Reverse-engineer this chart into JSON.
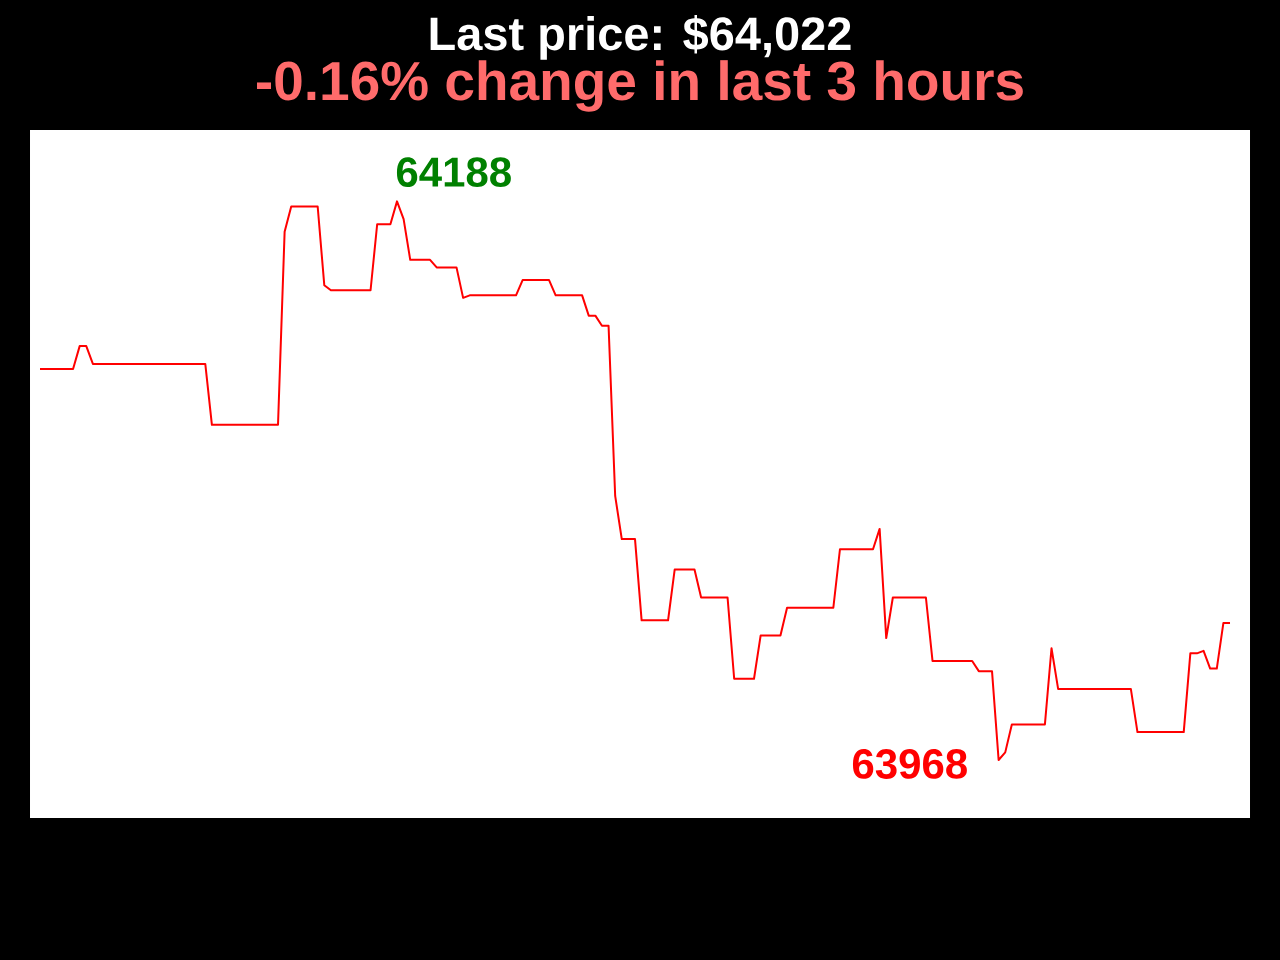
{
  "chart_data": {
    "type": "line",
    "title": "Last price: $64,022",
    "subtitle": "-0.16% change in last 3 hours",
    "categories": [
      null,
      null,
      null,
      null,
      null,
      null,
      null,
      null,
      null,
      null,
      null,
      null,
      null,
      null,
      null,
      null,
      null,
      null,
      null,
      null,
      null,
      null,
      null,
      null,
      null,
      null,
      null,
      null,
      null,
      null,
      null,
      null,
      null,
      null,
      null,
      null,
      null,
      null,
      null,
      null,
      null,
      null,
      null,
      null,
      null,
      null,
      null,
      null,
      null,
      null,
      null,
      null,
      null,
      null,
      null,
      null,
      null,
      null,
      null,
      null,
      null,
      null,
      null,
      null,
      null,
      null,
      null,
      null,
      null,
      null,
      null,
      null,
      null,
      null,
      null,
      null,
      null,
      null,
      null,
      null,
      null,
      null,
      null,
      null,
      null,
      null,
      null,
      null,
      null,
      null,
      null,
      null,
      null,
      null,
      null,
      null,
      null,
      null,
      null,
      null,
      null,
      null,
      null,
      null,
      null,
      null,
      null,
      null,
      null,
      null,
      null,
      null,
      null,
      null,
      null,
      null,
      null,
      null,
      null,
      null,
      null,
      null,
      null,
      null,
      null,
      null,
      null,
      null,
      null,
      null,
      null,
      null,
      null,
      null,
      null,
      null,
      null,
      null,
      null,
      null,
      null,
      null,
      null,
      null,
      null,
      null,
      null,
      null,
      null,
      null,
      null,
      null,
      null,
      null,
      null,
      null,
      null,
      null,
      null,
      null,
      null,
      null,
      null,
      null,
      null,
      null,
      null,
      null,
      null,
      null,
      null,
      null,
      null,
      null,
      null,
      null,
      null,
      null,
      null,
      null,
      null
    ],
    "values": [
      64122,
      64122,
      64122,
      64122,
      64122,
      64122,
      64131,
      64131,
      64124,
      64124,
      64124,
      64124,
      64124,
      64124,
      64124,
      64124,
      64124,
      64124,
      64124,
      64124,
      64124,
      64124,
      64124,
      64124,
      64124,
      64124,
      64100,
      64100,
      64100,
      64100,
      64100,
      64100,
      64100,
      64100,
      64100,
      64100,
      64100,
      64176,
      64186,
      64186,
      64186,
      64186,
      64186,
      64155,
      64153,
      64153,
      64153,
      64153,
      64153,
      64153,
      64153,
      64179,
      64179,
      64179,
      64188,
      64181,
      64165,
      64165,
      64165,
      64165,
      64162,
      64162,
      64162,
      64162,
      64150,
      64151,
      64151,
      64151,
      64151,
      64151,
      64151,
      64151,
      64151,
      64157,
      64157,
      64157,
      64157,
      64157,
      64151,
      64151,
      64151,
      64151,
      64151,
      64143,
      64143,
      64139,
      64139,
      64072,
      64055,
      64055,
      64055,
      64023,
      64023,
      64023,
      64023,
      64023,
      64043,
      64043,
      64043,
      64043,
      64032,
      64032,
      64032,
      64032,
      64032,
      64000,
      64000,
      64000,
      64000,
      64017,
      64017,
      64017,
      64017,
      64028,
      64028,
      64028,
      64028,
      64028,
      64028,
      64028,
      64028,
      64051,
      64051,
      64051,
      64051,
      64051,
      64051,
      64059,
      64016,
      64032,
      64032,
      64032,
      64032,
      64032,
      64032,
      64007,
      64007,
      64007,
      64007,
      64007,
      64007,
      64007,
      64003,
      64003,
      64003,
      63968,
      63971,
      63982,
      63982,
      63982,
      63982,
      63982,
      63982,
      64012,
      63996,
      63996,
      63996,
      63996,
      63996,
      63996,
      63996,
      63996,
      63996,
      63996,
      63996,
      63996,
      63979,
      63979,
      63979,
      63979,
      63979,
      63979,
      63979,
      63979,
      64010,
      64010,
      64011,
      64004,
      64004,
      64022,
      64022
    ],
    "value_labels": [
      null,
      null,
      null,
      null,
      null,
      null,
      null,
      null,
      null,
      null,
      null,
      null,
      null,
      null,
      null,
      null,
      null,
      null,
      null,
      null,
      null,
      null,
      null,
      null,
      null,
      null,
      null,
      null,
      null,
      null,
      null,
      null,
      null,
      null,
      null,
      null,
      null,
      null,
      null,
      null,
      null,
      null,
      null,
      null,
      null,
      null,
      null,
      null,
      null,
      null,
      null,
      null,
      null,
      null,
      "64188",
      null,
      null,
      null,
      null,
      null,
      null,
      null,
      null,
      null,
      null,
      null,
      null,
      null,
      null,
      null,
      null,
      null,
      null,
      null,
      null,
      null,
      null,
      null,
      null,
      null,
      null,
      null,
      null,
      null,
      null,
      null,
      null,
      null,
      null,
      null,
      null,
      null,
      null,
      null,
      null,
      null,
      null,
      null,
      null,
      null,
      null,
      null,
      null,
      null,
      null,
      null,
      null,
      null,
      null,
      null,
      null,
      null,
      null,
      null,
      null,
      null,
      null,
      null,
      null,
      null,
      null,
      null,
      null,
      null,
      null,
      null,
      null,
      null,
      null,
      null,
      null,
      null,
      null,
      null,
      null,
      null,
      null,
      null,
      null,
      null,
      null,
      null,
      null,
      null,
      null,
      "63968",
      null,
      null,
      null,
      null,
      null,
      null,
      null,
      null,
      null,
      null,
      null,
      null,
      null,
      null,
      null,
      null,
      null,
      null,
      null,
      null,
      null,
      null,
      null,
      null,
      null,
      null,
      null,
      null,
      null,
      null,
      null,
      null,
      null,
      null,
      null
    ],
    "color": "#ff0000"
  }
}
